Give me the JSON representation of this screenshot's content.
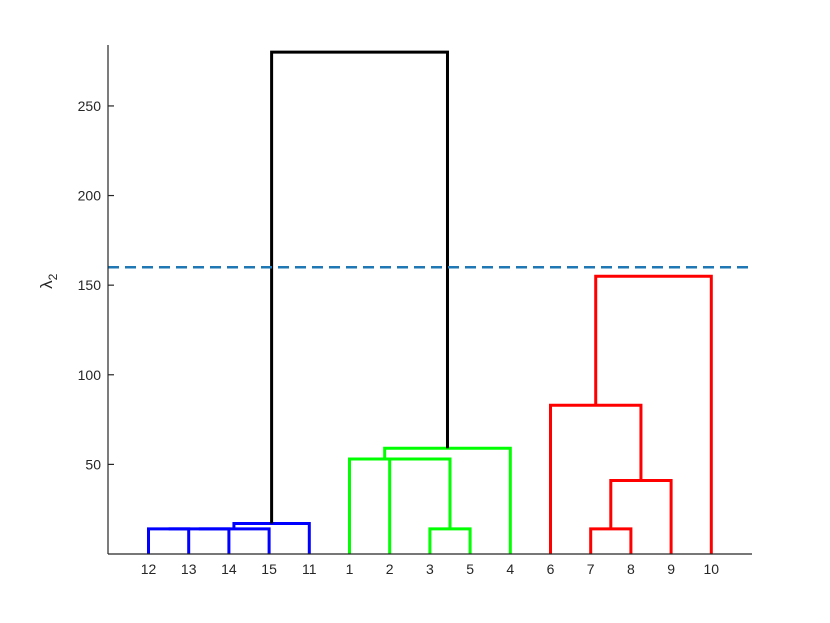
{
  "chart_data": {
    "type": "dendrogram",
    "title": "",
    "xlabel": "",
    "ylabel_main": "λ",
    "ylabel_sub": "2",
    "ylim": [
      0,
      284
    ],
    "yticks": [
      {
        "value": 50,
        "label": "50"
      },
      {
        "value": 100,
        "label": "100"
      },
      {
        "value": 150,
        "label": "150"
      },
      {
        "value": 200,
        "label": "200"
      },
      {
        "value": 250,
        "label": "250"
      }
    ],
    "leaf_order": [
      "12",
      "13",
      "14",
      "15",
      "11",
      "1",
      "2",
      "3",
      "5",
      "4",
      "6",
      "7",
      "8",
      "9",
      "10"
    ],
    "threshold": {
      "value": 160,
      "color": "#1f77b4",
      "style": "dashed"
    },
    "colors": {
      "cluster_blue": "#0000ff",
      "cluster_green": "#00ff00",
      "cluster_red": "#ff0000",
      "above_threshold": "#000000"
    },
    "merges": [
      {
        "left": "12",
        "right": "13",
        "height": 14,
        "color": "cluster_blue"
      },
      {
        "left": "12+13",
        "right": "14",
        "height": 14,
        "color": "cluster_blue"
      },
      {
        "left": "12+13+14",
        "right": "15",
        "height": 14,
        "color": "cluster_blue"
      },
      {
        "left": "12+13+14+15",
        "right": "11",
        "height": 17,
        "color": "cluster_blue"
      },
      {
        "left": "3",
        "right": "5",
        "height": 14,
        "color": "cluster_green"
      },
      {
        "left": "2",
        "right": "3+5",
        "height": 53,
        "color": "cluster_green"
      },
      {
        "left": "1",
        "right": "2+3+5",
        "height": 53,
        "color": "cluster_green"
      },
      {
        "left": "1+2+3+5",
        "right": "4",
        "height": 59,
        "color": "cluster_green"
      },
      {
        "left": "7",
        "right": "8",
        "height": 14,
        "color": "cluster_red"
      },
      {
        "left": "7+8",
        "right": "9",
        "height": 41,
        "color": "cluster_red"
      },
      {
        "left": "6",
        "right": "7+8+9",
        "height": 83,
        "color": "cluster_red"
      },
      {
        "left": "6+7+8+9",
        "right": "10",
        "height": 155,
        "color": "cluster_red"
      },
      {
        "left": "blue",
        "right": "green",
        "height": 280,
        "color": "above_threshold"
      },
      {
        "left": "blue+green",
        "right": "red",
        "height": 280,
        "color": "above_threshold"
      }
    ]
  }
}
